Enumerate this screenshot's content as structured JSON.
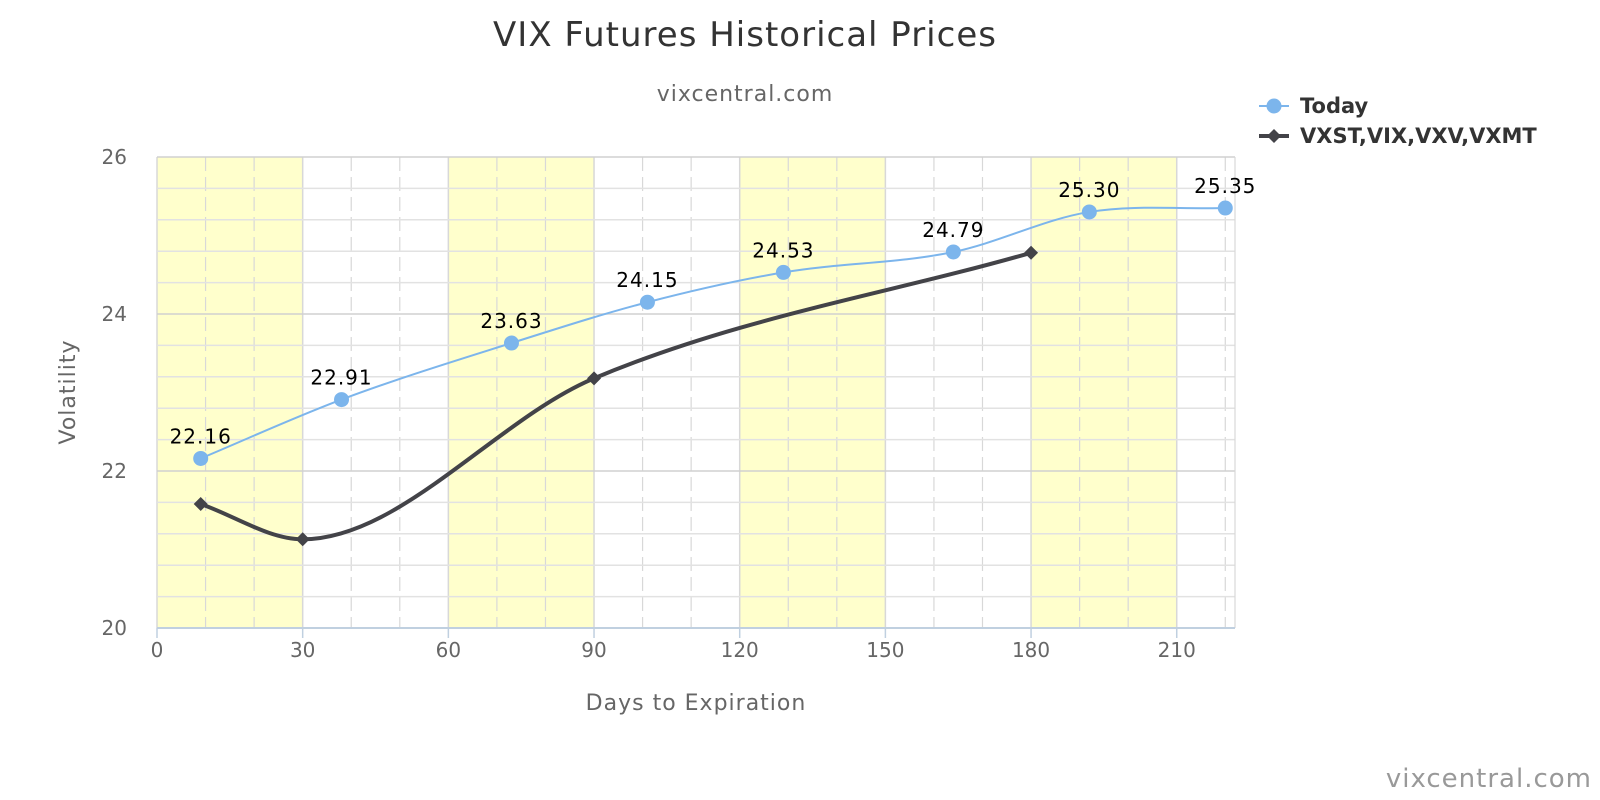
{
  "chart_data": {
    "type": "line",
    "title": "VIX Futures Historical Prices",
    "subtitle": "vixcentral.com",
    "xlabel": "Days to Expiration",
    "ylabel": "Volatility",
    "xlim": [
      0,
      222
    ],
    "ylim": [
      20,
      26
    ],
    "x_ticks": [
      0,
      30,
      60,
      90,
      120,
      150,
      180,
      210
    ],
    "y_ticks": [
      20,
      22,
      24,
      26
    ],
    "x_minor_step": 10,
    "y_minor_step": 0.4,
    "grid": true,
    "shaded_x_bands": [
      [
        0,
        30
      ],
      [
        60,
        90
      ],
      [
        120,
        150
      ],
      [
        180,
        210
      ]
    ],
    "band_color": "#ffffcc",
    "legend_position": "top-right",
    "series": [
      {
        "name": "Today",
        "color": "#7cb5ec",
        "marker": "circle",
        "show_labels": true,
        "x": [
          9,
          38,
          73,
          101,
          129,
          164,
          192,
          220
        ],
        "values": [
          22.16,
          22.91,
          23.63,
          24.15,
          24.53,
          24.79,
          25.3,
          25.35
        ],
        "labels": [
          "22.16",
          "22.91",
          "23.63",
          "24.15",
          "24.53",
          "24.79",
          "25.30",
          "25.35"
        ]
      },
      {
        "name": "VXST,VIX,VXV,VXMT",
        "color": "#434348",
        "marker": "diamond",
        "show_labels": false,
        "x": [
          9,
          30,
          90,
          180
        ],
        "values": [
          21.58,
          21.13,
          23.18,
          24.78
        ]
      }
    ]
  },
  "credits": "vixcentral.com"
}
